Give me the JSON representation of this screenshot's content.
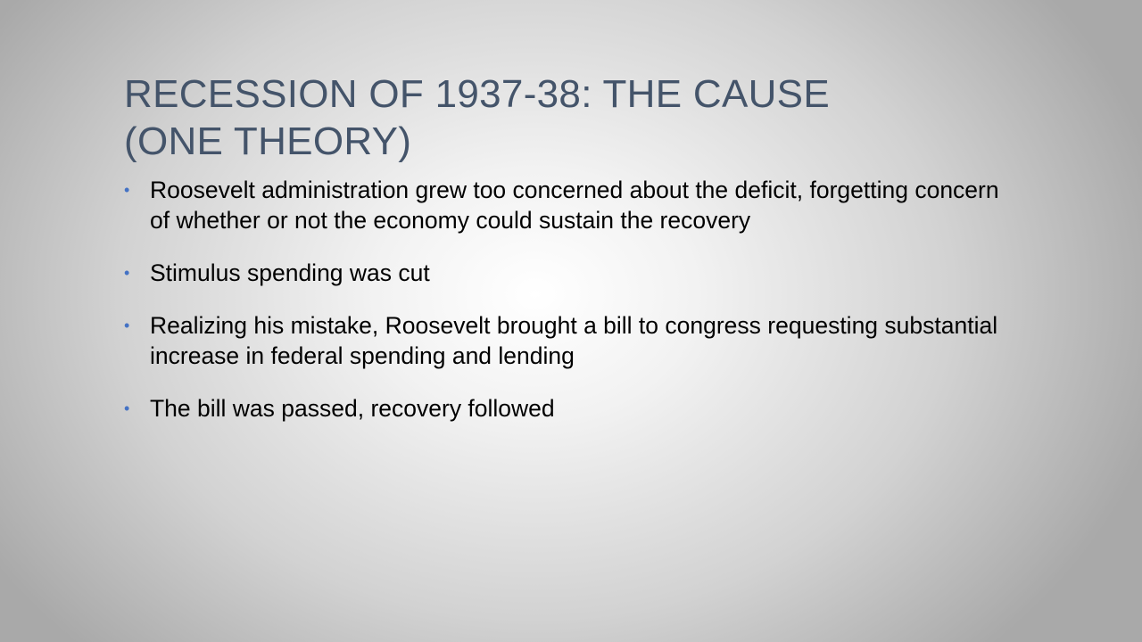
{
  "slide": {
    "title_lines": [
      "RECESSION OF 1937-38: THE CAUSE",
      "(ONE THEORY)"
    ],
    "bullet_symbol": "•",
    "bullets": [
      "Roosevelt administration grew too concerned about the deficit, forgetting concern of whether or not the economy could sustain the recovery",
      "Stimulus spending was cut",
      "Realizing his mistake, Roosevelt brought a bill to congress requesting substantial increase in federal spending and lending",
      "The bill was passed, recovery followed"
    ],
    "colors": {
      "title": "#44546a",
      "bullet_symbol": "#4472c4",
      "body_text": "#000000"
    }
  }
}
